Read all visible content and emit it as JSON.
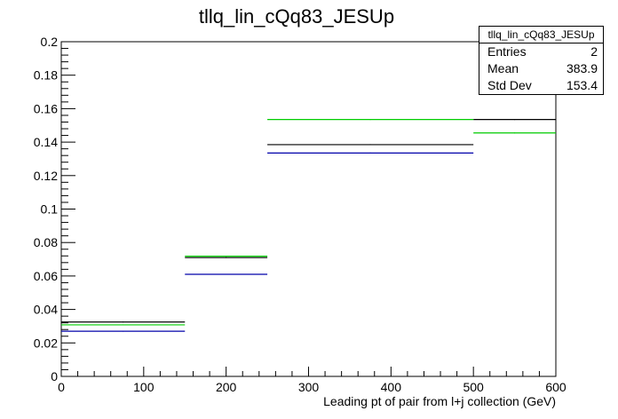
{
  "chart_data": {
    "type": "histogram-step",
    "title": "tllq_lin_cQq83_JESUp",
    "xlabel": "Leading pt of pair from l+j collection (GeV)",
    "ylabel": "",
    "xlim": [
      0,
      600
    ],
    "ylim": [
      0,
      0.2
    ],
    "xticks": [
      0,
      100,
      200,
      300,
      400,
      500,
      600
    ],
    "yticks": [
      0,
      0.02,
      0.04,
      0.06,
      0.08,
      0.1,
      0.12,
      0.14,
      0.16,
      0.18,
      0.2
    ],
    "bin_edges": [
      0,
      150,
      250,
      500,
      600
    ],
    "series": [
      {
        "color": "#000000",
        "values": [
          0.0325,
          0.071,
          0.1385,
          0.1535
        ]
      },
      {
        "color": "#00cc00",
        "values": [
          0.0308,
          0.0718,
          0.1535,
          0.1455
        ]
      },
      {
        "color": "#0000aa",
        "values": [
          0.027,
          0.061,
          0.1335,
          null
        ]
      }
    ],
    "grid": false,
    "stats": {
      "name": "tllq_lin_cQq83_JESUp",
      "rows": [
        {
          "label": "Entries",
          "value": "2"
        },
        {
          "label": "Mean",
          "value": "383.9"
        },
        {
          "label": "Std Dev",
          "value": "153.4"
        }
      ]
    }
  }
}
